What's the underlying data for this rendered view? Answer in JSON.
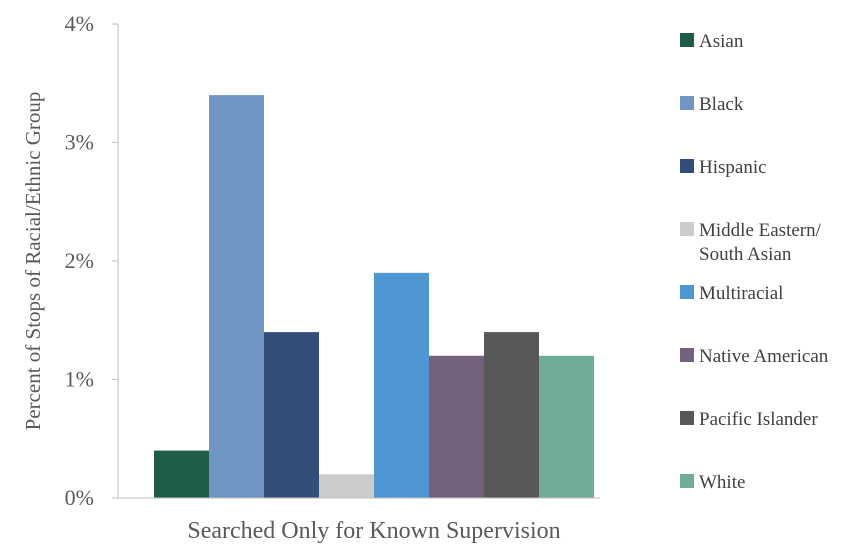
{
  "chart_data": {
    "type": "bar",
    "categories": [
      "Searched Only for Known Supervision"
    ],
    "series": [
      {
        "name": "Asian",
        "values": [
          0.4
        ],
        "color": "#1f5c4a"
      },
      {
        "name": "Black",
        "values": [
          3.4
        ],
        "color": "#6f96c2"
      },
      {
        "name": "Hispanic",
        "values": [
          1.4
        ],
        "color": "#344e7a"
      },
      {
        "name": "Middle Eastern/\nSouth Asian",
        "values": [
          0.2
        ],
        "color": "#cccccc"
      },
      {
        "name": "Multiracial",
        "values": [
          1.9
        ],
        "color": "#4f97d3"
      },
      {
        "name": "Native American",
        "values": [
          1.2
        ],
        "color": "#74627c"
      },
      {
        "name": "Pacific Islander",
        "values": [
          1.4
        ],
        "color": "#585858"
      },
      {
        "name": "White",
        "values": [
          1.2
        ],
        "color": "#6fab95"
      }
    ],
    "ylabel": "Percent of Stops of  Racial/Ethnic Group",
    "yticks": [
      "0%",
      "1%",
      "2%",
      "3%",
      "4%"
    ],
    "ylim": [
      0,
      4
    ],
    "grid": false,
    "legend_position": "right"
  }
}
